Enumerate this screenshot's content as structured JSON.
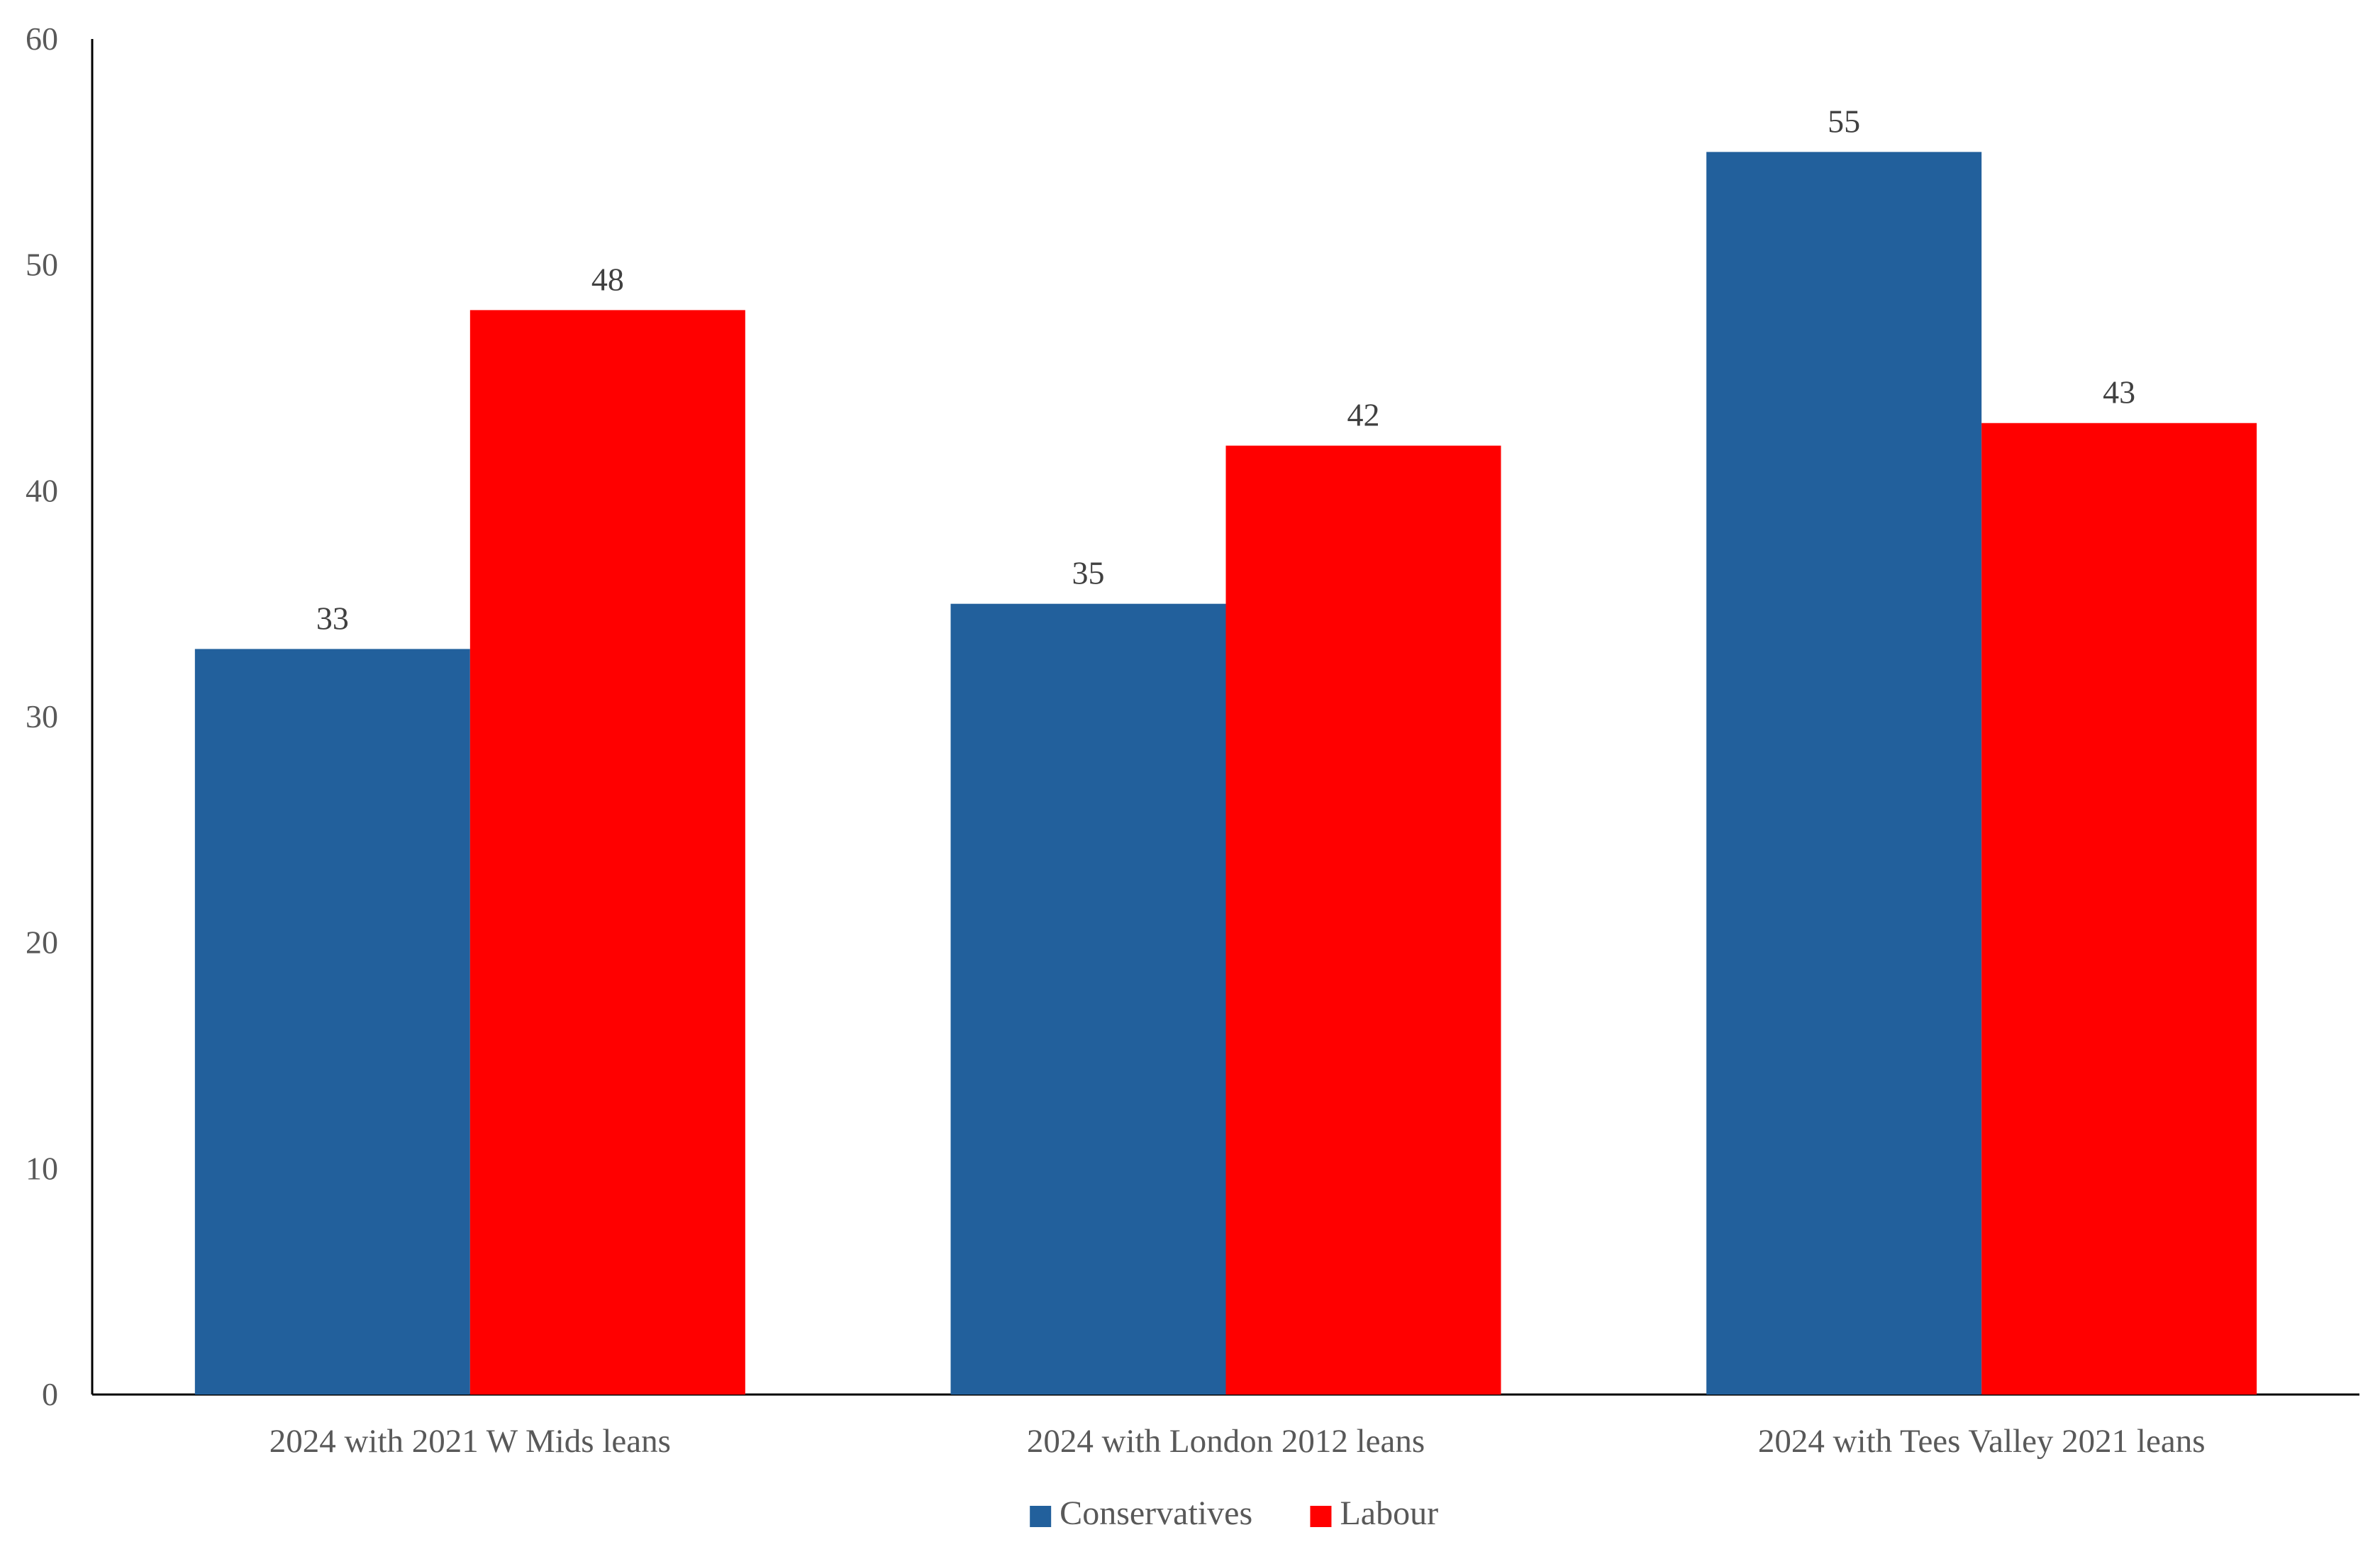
{
  "chart_data": {
    "type": "bar",
    "title": "",
    "xlabel": "",
    "ylabel": "",
    "categories": [
      "2024 with 2021 W Mids leans",
      "2024 with London 2012 leans",
      "2024 with Tees Valley 2021 leans"
    ],
    "series": [
      {
        "name": "Conservatives",
        "color": "#22609C",
        "values": [
          33,
          35,
          55
        ]
      },
      {
        "name": "Labour",
        "color": "#FF0000",
        "values": [
          48,
          42,
          43
        ]
      }
    ],
    "ylim": [
      0,
      60
    ],
    "yticks": [
      "0",
      "10",
      "20",
      "30",
      "40",
      "50",
      "60"
    ],
    "grid": false,
    "legend": "bottom",
    "data_labels": true
  }
}
